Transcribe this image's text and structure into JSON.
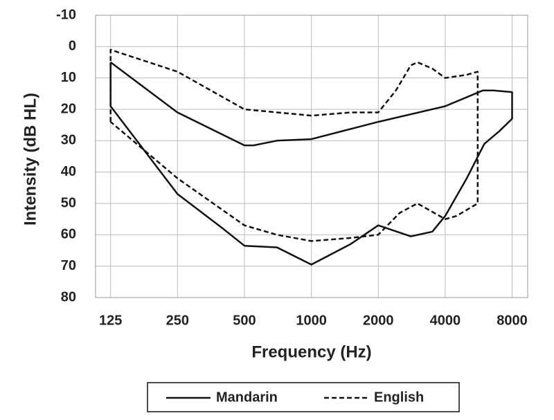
{
  "chart_data": {
    "type": "line",
    "xlabel": "Frequency (Hz)",
    "ylabel": "Intensity (dB HL)",
    "xscale": "log",
    "yinverted": true,
    "grid": true,
    "xlim": [
      107,
      9400
    ],
    "xticks": [
      125,
      250,
      500,
      1000,
      2000,
      4000,
      8000
    ],
    "ylim": [
      -10,
      80
    ],
    "yticks": [
      -10,
      0,
      10,
      20,
      30,
      40,
      50,
      60,
      70,
      80
    ],
    "series": [
      {
        "name": "Mandarin",
        "color": "#111111",
        "dash": "solid",
        "x": [
          125,
          250,
          500,
          550,
          700,
          1000,
          2000,
          4000,
          5900,
          6600,
          8000,
          8000,
          7000,
          6000,
          5000,
          4000,
          3500,
          2800,
          2000,
          1500,
          1000,
          700,
          500,
          400,
          250,
          125,
          125
        ],
        "values": [
          5,
          21,
          31.5,
          31.5,
          30,
          29.5,
          24,
          19,
          14,
          14,
          14.5,
          23,
          27,
          31,
          42,
          54,
          59,
          60.5,
          57,
          63,
          69.5,
          64,
          63.5,
          58,
          47,
          19,
          5
        ]
      },
      {
        "name": "English",
        "color": "#111111",
        "dash": "dashed",
        "x": [
          125,
          125,
          250,
          500,
          1000,
          1500,
          2000,
          2400,
          2800,
          3000,
          3500,
          4000,
          5000,
          5600,
          5600,
          4500,
          4000,
          3000,
          2500,
          2000,
          1500,
          1000,
          700,
          500,
          250,
          125
        ],
        "values": [
          24,
          1,
          8,
          20,
          22,
          21,
          21,
          14,
          6,
          5,
          7,
          10,
          9,
          8,
          50,
          54,
          55,
          50,
          53,
          60,
          61,
          62,
          60,
          57,
          42,
          24
        ]
      }
    ]
  }
}
